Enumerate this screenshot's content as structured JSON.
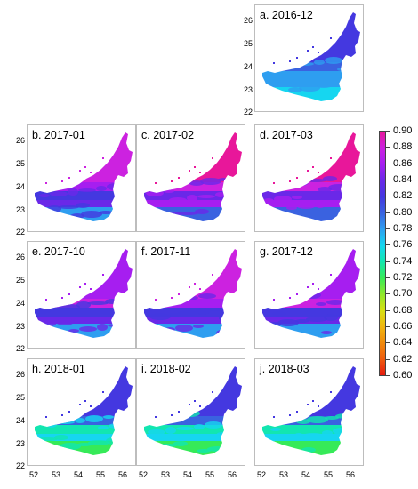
{
  "panels": [
    {
      "label": "a. 2016-12",
      "variant": 0
    },
    {
      "label": "b. 2017-01",
      "variant": 2
    },
    {
      "label": "c. 2017-02",
      "variant": 3
    },
    {
      "label": "d. 2017-03",
      "variant": 3
    },
    {
      "label": "e. 2017-10",
      "variant": 1
    },
    {
      "label": "f. 2017-11",
      "variant": 2
    },
    {
      "label": "g. 2017-12",
      "variant": 1
    },
    {
      "label": "h. 2018-01",
      "variant": 4
    },
    {
      "label": "i. 2018-02",
      "variant": 4
    },
    {
      "label": "j. 2018-03",
      "variant": 4
    }
  ],
  "y_ticks": [
    "26",
    "25",
    "24",
    "23",
    "22"
  ],
  "x_ticks": [
    "52",
    "53",
    "54",
    "55",
    "56"
  ],
  "colorbar": {
    "labels": [
      "0.90",
      "0.88",
      "0.86",
      "0.84",
      "0.82",
      "0.80",
      "0.78",
      "0.76",
      "0.74",
      "0.72",
      "0.70",
      "0.68",
      "0.66",
      "0.64",
      "0.62",
      "0.60"
    ],
    "colors": [
      "#e8179a",
      "#cc22e0",
      "#a61ef0",
      "#6a28e8",
      "#4438e0",
      "#3a62e0",
      "#2e9ef0",
      "#16d6f0",
      "#12e6b0",
      "#36ea58",
      "#8ee82c",
      "#d6e012",
      "#f0b610",
      "#f08a0c",
      "#ee5c0e",
      "#e61b0e"
    ]
  }
}
